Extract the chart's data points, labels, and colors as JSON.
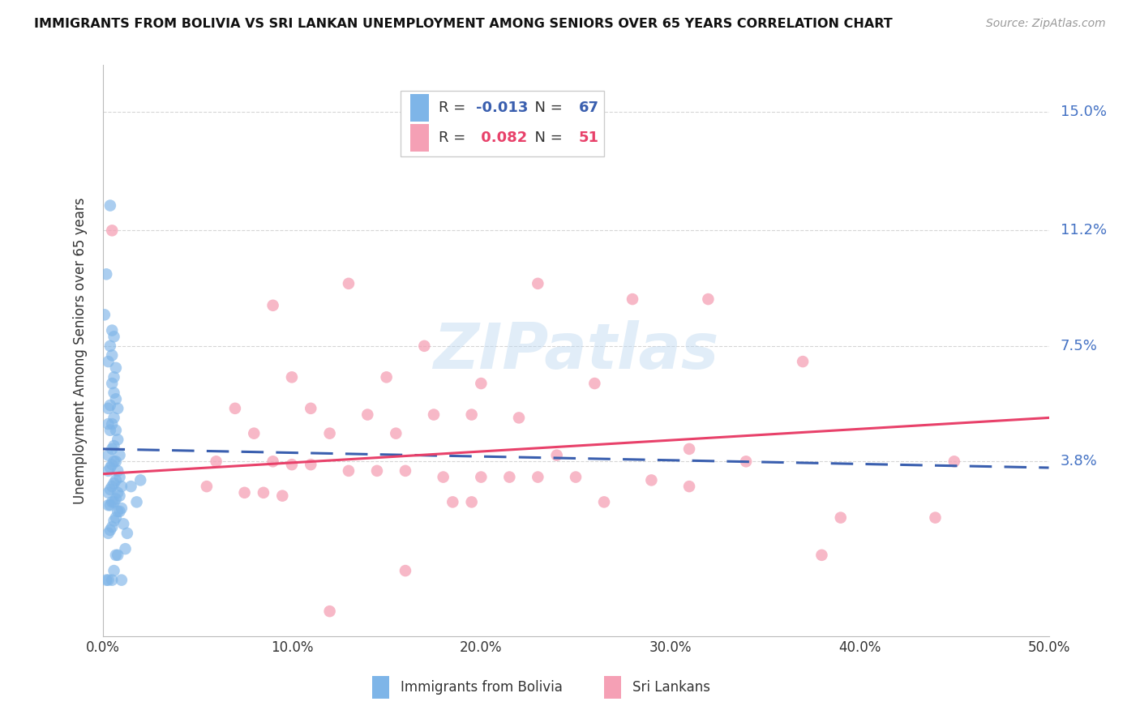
{
  "title": "IMMIGRANTS FROM BOLIVIA VS SRI LANKAN UNEMPLOYMENT AMONG SENIORS OVER 65 YEARS CORRELATION CHART",
  "source": "Source: ZipAtlas.com",
  "ylabel": "Unemployment Among Seniors over 65 years",
  "xlabel_ticks": [
    "0.0%",
    "10.0%",
    "20.0%",
    "30.0%",
    "40.0%",
    "50.0%"
  ],
  "xlabel_vals": [
    0.0,
    0.1,
    0.2,
    0.3,
    0.4,
    0.5
  ],
  "ytick_labels": [
    "3.8%",
    "7.5%",
    "11.2%",
    "15.0%"
  ],
  "ytick_vals": [
    0.038,
    0.075,
    0.112,
    0.15
  ],
  "xlim": [
    0.0,
    0.5
  ],
  "ylim": [
    -0.018,
    0.165
  ],
  "bolivia_R": -0.013,
  "bolivia_N": 67,
  "srilanka_R": 0.082,
  "srilanka_N": 51,
  "bolivia_color": "#7EB5E8",
  "srilanka_color": "#F5A0B5",
  "bolivia_line_color": "#3A5FAF",
  "srilanka_line_color": "#E8416A",
  "bolivia_line_y0": 0.042,
  "bolivia_line_y1": 0.036,
  "srilanka_line_y0": 0.034,
  "srilanka_line_y1": 0.052,
  "bolivia_dots": [
    [
      0.003,
      0.05
    ],
    [
      0.002,
      0.098
    ],
    [
      0.004,
      0.12
    ],
    [
      0.001,
      0.085
    ],
    [
      0.005,
      0.08
    ],
    [
      0.006,
      0.078
    ],
    [
      0.004,
      0.075
    ],
    [
      0.005,
      0.072
    ],
    [
      0.003,
      0.07
    ],
    [
      0.007,
      0.068
    ],
    [
      0.006,
      0.065
    ],
    [
      0.005,
      0.063
    ],
    [
      0.006,
      0.06
    ],
    [
      0.007,
      0.058
    ],
    [
      0.004,
      0.056
    ],
    [
      0.008,
      0.055
    ],
    [
      0.003,
      0.055
    ],
    [
      0.006,
      0.052
    ],
    [
      0.005,
      0.05
    ],
    [
      0.004,
      0.048
    ],
    [
      0.007,
      0.048
    ],
    [
      0.008,
      0.045
    ],
    [
      0.006,
      0.043
    ],
    [
      0.005,
      0.042
    ],
    [
      0.009,
      0.04
    ],
    [
      0.003,
      0.04
    ],
    [
      0.007,
      0.038
    ],
    [
      0.006,
      0.038
    ],
    [
      0.005,
      0.037
    ],
    [
      0.004,
      0.036
    ],
    [
      0.003,
      0.035
    ],
    [
      0.008,
      0.035
    ],
    [
      0.009,
      0.033
    ],
    [
      0.007,
      0.032
    ],
    [
      0.006,
      0.031
    ],
    [
      0.01,
      0.03
    ],
    [
      0.005,
      0.03
    ],
    [
      0.004,
      0.029
    ],
    [
      0.003,
      0.028
    ],
    [
      0.008,
      0.028
    ],
    [
      0.009,
      0.027
    ],
    [
      0.007,
      0.026
    ],
    [
      0.006,
      0.025
    ],
    [
      0.005,
      0.025
    ],
    [
      0.004,
      0.024
    ],
    [
      0.003,
      0.024
    ],
    [
      0.01,
      0.023
    ],
    [
      0.009,
      0.022
    ],
    [
      0.008,
      0.022
    ],
    [
      0.007,
      0.02
    ],
    [
      0.006,
      0.019
    ],
    [
      0.011,
      0.018
    ],
    [
      0.005,
      0.017
    ],
    [
      0.004,
      0.016
    ],
    [
      0.003,
      0.015
    ],
    [
      0.012,
      0.01
    ],
    [
      0.007,
      0.008
    ],
    [
      0.008,
      0.008
    ],
    [
      0.006,
      0.003
    ],
    [
      0.01,
      0.0
    ],
    [
      0.002,
      0.0
    ],
    [
      0.003,
      0.0
    ],
    [
      0.005,
      0.0
    ],
    [
      0.013,
      0.015
    ],
    [
      0.015,
      0.03
    ],
    [
      0.02,
      0.032
    ],
    [
      0.018,
      0.025
    ]
  ],
  "srilanka_dots": [
    [
      0.005,
      0.112
    ],
    [
      0.13,
      0.095
    ],
    [
      0.09,
      0.088
    ],
    [
      0.17,
      0.075
    ],
    [
      0.23,
      0.095
    ],
    [
      0.28,
      0.09
    ],
    [
      0.32,
      0.09
    ],
    [
      0.1,
      0.065
    ],
    [
      0.15,
      0.065
    ],
    [
      0.2,
      0.063
    ],
    [
      0.26,
      0.063
    ],
    [
      0.37,
      0.07
    ],
    [
      0.07,
      0.055
    ],
    [
      0.11,
      0.055
    ],
    [
      0.14,
      0.053
    ],
    [
      0.175,
      0.053
    ],
    [
      0.195,
      0.053
    ],
    [
      0.22,
      0.052
    ],
    [
      0.08,
      0.047
    ],
    [
      0.12,
      0.047
    ],
    [
      0.155,
      0.047
    ],
    [
      0.24,
      0.04
    ],
    [
      0.31,
      0.042
    ],
    [
      0.06,
      0.038
    ],
    [
      0.09,
      0.038
    ],
    [
      0.1,
      0.037
    ],
    [
      0.11,
      0.037
    ],
    [
      0.13,
      0.035
    ],
    [
      0.145,
      0.035
    ],
    [
      0.16,
      0.035
    ],
    [
      0.18,
      0.033
    ],
    [
      0.2,
      0.033
    ],
    [
      0.215,
      0.033
    ],
    [
      0.23,
      0.033
    ],
    [
      0.25,
      0.033
    ],
    [
      0.29,
      0.032
    ],
    [
      0.31,
      0.03
    ],
    [
      0.055,
      0.03
    ],
    [
      0.075,
      0.028
    ],
    [
      0.085,
      0.028
    ],
    [
      0.095,
      0.027
    ],
    [
      0.185,
      0.025
    ],
    [
      0.195,
      0.025
    ],
    [
      0.265,
      0.025
    ],
    [
      0.34,
      0.038
    ],
    [
      0.45,
      0.038
    ],
    [
      0.39,
      0.02
    ],
    [
      0.44,
      0.02
    ],
    [
      0.16,
      0.003
    ],
    [
      0.38,
      0.008
    ],
    [
      0.12,
      -0.01
    ]
  ],
  "watermark": "ZIPatlas",
  "legend_label1": "Immigrants from Bolivia",
  "legend_label2": "Sri Lankans",
  "right_label_color": "#4472C4",
  "text_color": "#333333",
  "grid_color": "#CCCCCC"
}
